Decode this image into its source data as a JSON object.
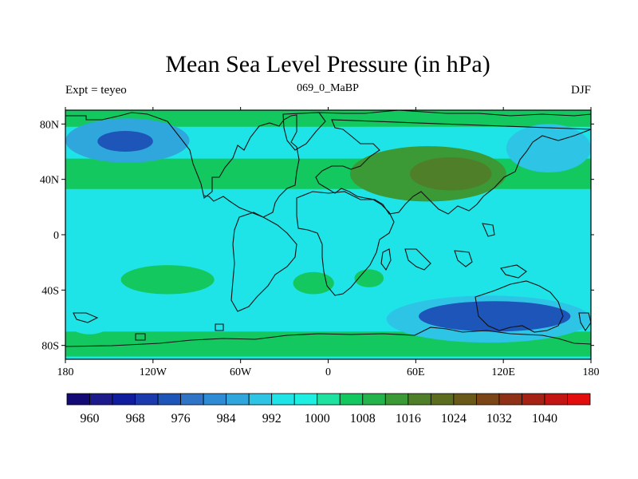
{
  "chart_data": {
    "type": "filled-contour-map",
    "title": "Mean Sea Level Pressure (in hPa)",
    "subtitle_left": "Expt = teyeo",
    "subtitle_center": "069_0_MaBP",
    "subtitle_right": "DJF",
    "units": "hPa",
    "lon_range": [
      -180,
      180
    ],
    "lat_range": [
      -90,
      90
    ],
    "x_ticks": [
      {
        "lon": -180,
        "label": "180"
      },
      {
        "lon": -120,
        "label": "120W"
      },
      {
        "lon": -60,
        "label": "60W"
      },
      {
        "lon": 0,
        "label": "0"
      },
      {
        "lon": 60,
        "label": "60E"
      },
      {
        "lon": 120,
        "label": "120E"
      },
      {
        "lon": 180,
        "label": "180"
      }
    ],
    "y_ticks": [
      {
        "lat": 80,
        "label": "80N"
      },
      {
        "lat": 40,
        "label": "40N"
      },
      {
        "lat": 0,
        "label": "0"
      },
      {
        "lat": -40,
        "label": "40S"
      },
      {
        "lat": -80,
        "label": "80S"
      }
    ],
    "levels": [
      956,
      960,
      964,
      968,
      972,
      976,
      980,
      984,
      988,
      992,
      996,
      1000,
      1004,
      1008,
      1012,
      1016,
      1020,
      1024,
      1028,
      1032,
      1036,
      1040,
      1044
    ],
    "colorbar_labels": [
      {
        "value": 960,
        "label": "960"
      },
      {
        "value": 968,
        "label": "968"
      },
      {
        "value": 976,
        "label": "976"
      },
      {
        "value": 984,
        "label": "984"
      },
      {
        "value": 992,
        "label": "992"
      },
      {
        "value": 1000,
        "label": "1000"
      },
      {
        "value": 1008,
        "label": "1008"
      },
      {
        "value": 1016,
        "label": "1016"
      },
      {
        "value": 1024,
        "label": "1024"
      },
      {
        "value": 1032,
        "label": "1032"
      },
      {
        "value": 1040,
        "label": "1040"
      }
    ],
    "colors": [
      "#140a75",
      "#1d1a8b",
      "#0f1d9e",
      "#1a3aae",
      "#1d55b8",
      "#2f74c7",
      "#2e8bd5",
      "#30a7dc",
      "#2dc4e6",
      "#1ee4e8",
      "#1df0e2",
      "#1ee2a0",
      "#14c860",
      "#23b54c",
      "#3c9a36",
      "#4f7f28",
      "#5c6d20",
      "#6a5a1a",
      "#7b4518",
      "#8f3116",
      "#a52214",
      "#c41512",
      "#e30d0d"
    ],
    "pressure_regions": [
      {
        "name": "n-hemisphere-green-band",
        "lon": [
          -180,
          180
        ],
        "lat": [
          33,
          55
        ],
        "value": 1005
      },
      {
        "name": "arctic-green-cap",
        "lon": [
          -180,
          180
        ],
        "lat": [
          78,
          90
        ],
        "value": 1005
      },
      {
        "name": "southern-ocean-green-band",
        "lon": [
          -180,
          180
        ],
        "lat": [
          -88,
          -70
        ],
        "value": 1005
      },
      {
        "name": "south-pacific-high",
        "lon": [
          -142,
          -78
        ],
        "lat": [
          -43,
          -22
        ],
        "value": 1006
      },
      {
        "name": "south-atlantic-high",
        "lon": [
          -24,
          4
        ],
        "lat": [
          -43,
          -27
        ],
        "value": 1006
      },
      {
        "name": "south-indian-high",
        "lon": [
          18,
          38
        ],
        "lat": [
          -38,
          -25
        ],
        "value": 1006
      },
      {
        "name": "asian-high-outer",
        "lon": [
          15,
          122
        ],
        "lat": [
          24,
          64
        ],
        "value": 1013
      },
      {
        "name": "asian-high-inner",
        "lon": [
          56,
          112
        ],
        "lat": [
          32,
          56
        ],
        "value": 1017
      },
      {
        "name": "aleutian-low",
        "lon": [
          -180,
          -95
        ],
        "lat": [
          52,
          84
        ],
        "value": 984
      },
      {
        "name": "aleutian-low-core",
        "lon": [
          -158,
          -120
        ],
        "lat": [
          60,
          75
        ],
        "value": 972
      },
      {
        "name": "icelandic-low",
        "lon": [
          122,
          180
        ],
        "lat": [
          45,
          80
        ],
        "value": 990
      },
      {
        "name": "southern-ocean-low",
        "lon": [
          40,
          180
        ],
        "lat": [
          -78,
          -44
        ],
        "value": 990
      },
      {
        "name": "southern-ocean-low-core",
        "lon": [
          62,
          166
        ],
        "lat": [
          -70,
          -48
        ],
        "value": 974
      },
      {
        "name": "sw-pacific-low",
        "lon": [
          -180,
          -147
        ],
        "lat": [
          -72,
          -48
        ],
        "value": 992
      }
    ]
  }
}
